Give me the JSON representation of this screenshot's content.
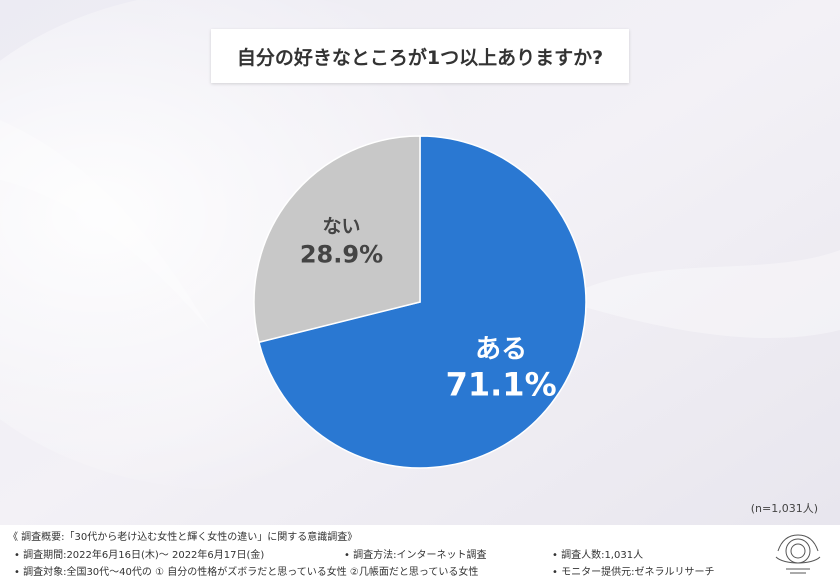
{
  "title": "自分の好きなところが1つ以上ありますか?",
  "sample_size": "(n=1,031人)",
  "colors": {
    "yes": "#2a78d2",
    "no": "#c8c8c8",
    "yes_text": "#ffffff",
    "no_text": "#444444"
  },
  "chart_data": {
    "type": "pie",
    "title": "自分の好きなところが1つ以上ありますか?",
    "slices": [
      {
        "label": "ある",
        "value": 71.1,
        "percent_label": "71.1%",
        "color": "#2a78d2"
      },
      {
        "label": "ない",
        "value": 28.9,
        "percent_label": "28.9%",
        "color": "#c8c8c8"
      }
    ],
    "start_angle_deg": 0,
    "direction": "clockwise",
    "legend": "none"
  },
  "footer": {
    "overview": "《 調査概要:「30代から老け込む女性と輝く女性の違い」に関する意識調査》",
    "period": "• 調査期間:2022年6月16日(木)〜 2022年6月17日(金)",
    "method": "• 調査方法:インターネット調査",
    "count": "• 調査人数:1,031人",
    "target": "• 調査対象:全国30代〜40代の ① 自分の性格がズボラだと思っている女性 ②几帳面だと思っている女性",
    "provider": "• モニター提供元:ゼネラルリサーチ"
  }
}
